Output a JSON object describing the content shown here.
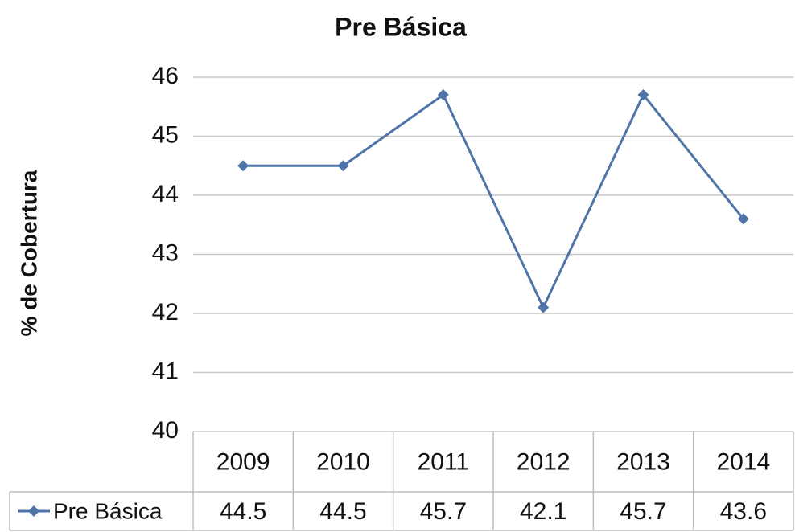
{
  "chart_data": {
    "type": "line",
    "title": "Pre Básica",
    "ylabel": "% de Cobertura",
    "categories": [
      "2009",
      "2010",
      "2011",
      "2012",
      "2013",
      "2014"
    ],
    "series": [
      {
        "name": "Pre Básica",
        "color": "#4f74a8",
        "values": [
          44.5,
          44.5,
          45.7,
          42.1,
          45.7,
          43.6
        ]
      }
    ],
    "ylim": [
      40,
      46
    ],
    "yticks": [
      40,
      41,
      42,
      43,
      44,
      45,
      46
    ],
    "grid": true,
    "data_table": true
  }
}
